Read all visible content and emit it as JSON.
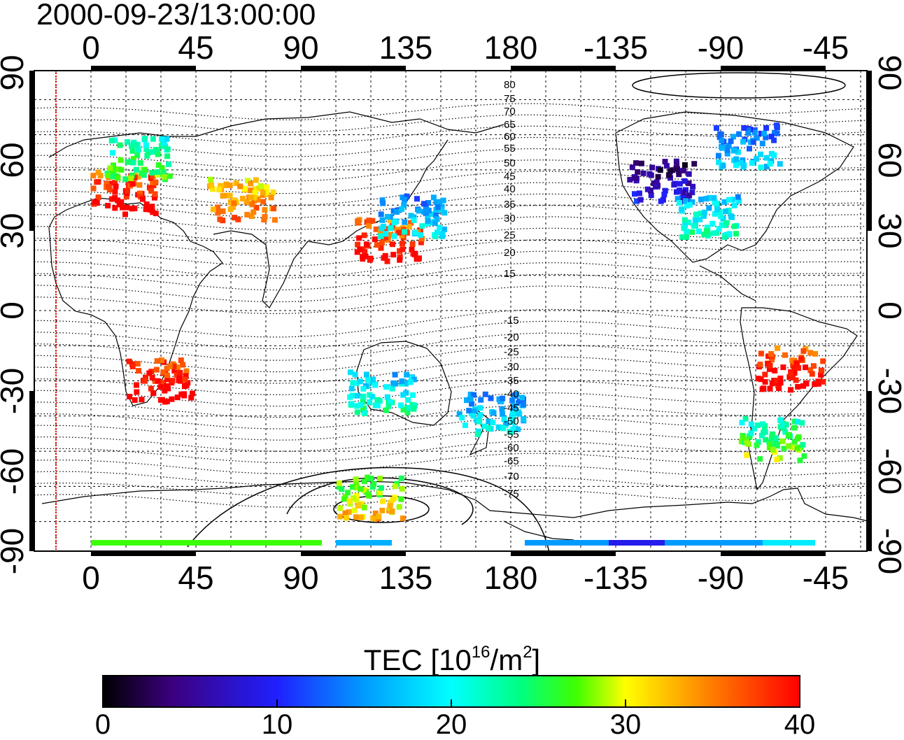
{
  "title": "2000-09-23/13:00:00",
  "map": {
    "lon_ticks_top": [
      "0",
      "45",
      "90",
      "135",
      "180",
      "-135",
      "-90",
      "-45"
    ],
    "lon_ticks_bottom": [
      "0",
      "45",
      "90",
      "135",
      "180",
      "-135",
      "-90",
      "-45"
    ],
    "lat_ticks_left": [
      "90",
      "60",
      "30",
      "0",
      "-30",
      "-60",
      "-90"
    ],
    "lat_ticks_right": [
      "90",
      "60",
      "30",
      "0",
      "-30",
      "-60",
      "-90"
    ],
    "contour_labels_north": [
      "80",
      "75",
      "70",
      "65",
      "60",
      "55",
      "50",
      "45",
      "40",
      "35",
      "30",
      "25",
      "20",
      "15"
    ],
    "contour_labels_south": [
      "-15",
      "-20",
      "-25",
      "-30",
      "-35",
      "-40",
      "-45",
      "-50",
      "-55",
      "-60",
      "-65",
      "-70",
      "-75"
    ],
    "terminator_color": "#ff0000"
  },
  "colorbar": {
    "label_prefix": "TEC  [10",
    "label_exp1": "16",
    "label_mid": "/m",
    "label_exp2": "2",
    "label_suffix": "]",
    "ticks": [
      "0",
      "10",
      "20",
      "30",
      "40"
    ],
    "range": [
      0,
      40
    ],
    "colors": [
      "#000000",
      "#3c0080",
      "#2020ff",
      "#00a0ff",
      "#00ffff",
      "#00ff80",
      "#40ff00",
      "#ffff00",
      "#ff8000",
      "#ff0000"
    ]
  },
  "chart_data": {
    "type": "heatmap",
    "title": "2000-09-23/13:00:00",
    "colorbar_label": "TEC [10^16/m^2]",
    "value_range": [
      0,
      40
    ],
    "clusters": [
      {
        "lon": 15,
        "lat": 50,
        "tec": 39
      },
      {
        "lon": 20,
        "lat": 65,
        "tec": 24
      },
      {
        "lon": 65,
        "lat": 47,
        "tec": 34
      },
      {
        "lon": 128,
        "lat": 30,
        "tec": 38
      },
      {
        "lon": 138,
        "lat": 40,
        "tec": 17
      },
      {
        "lon": 30,
        "lat": -30,
        "tec": 40
      },
      {
        "lon": 125,
        "lat": -35,
        "tec": 20
      },
      {
        "lon": 172,
        "lat": -44,
        "tec": 17
      },
      {
        "lon": -115,
        "lat": 55,
        "tec": 6
      },
      {
        "lon": -95,
        "lat": 40,
        "tec": 20
      },
      {
        "lon": -60,
        "lat": -25,
        "tec": 39
      },
      {
        "lon": -68,
        "lat": -55,
        "tec": 25
      },
      {
        "lon": -78,
        "lat": 70,
        "tec": 15
      },
      {
        "lon": 120,
        "lat": -80,
        "tec": 29
      }
    ]
  }
}
